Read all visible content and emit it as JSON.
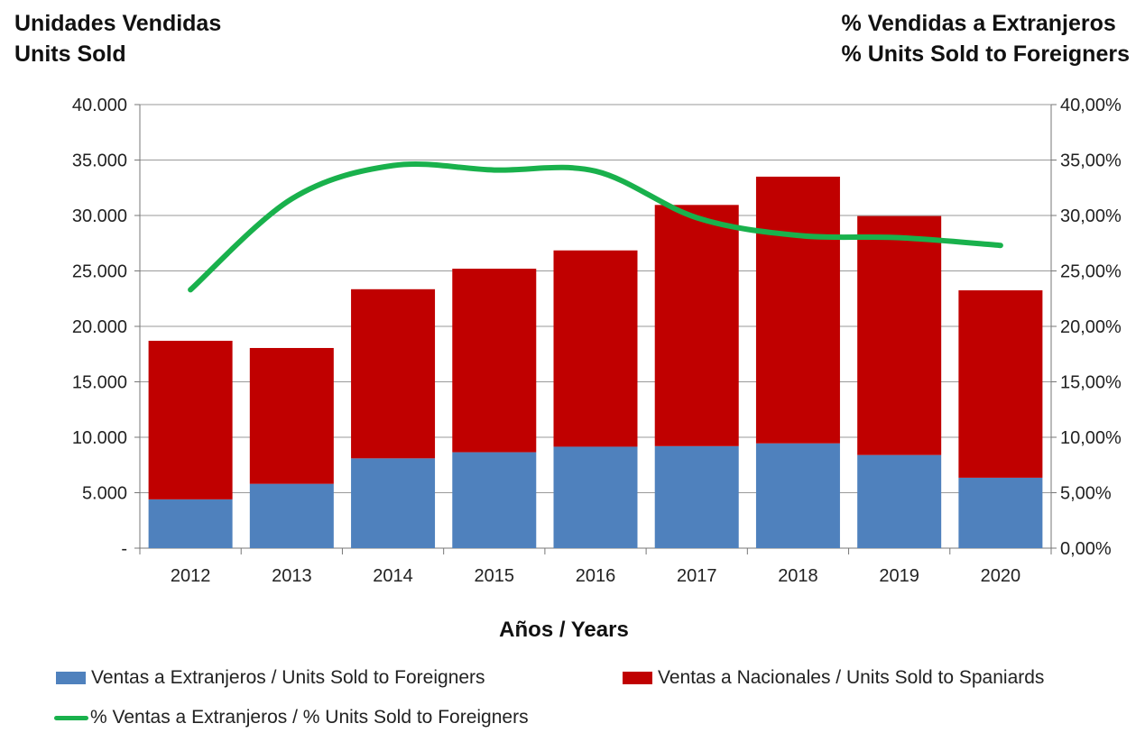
{
  "chart_data": {
    "type": "bar",
    "stacked": true,
    "title_left": [
      "Unidades Vendidas",
      "Units Sold"
    ],
    "title_right": [
      "% Vendidas a Extranjeros",
      "% Units Sold to Foreigners"
    ],
    "xlabel": "Años / Years",
    "categories": [
      "2012",
      "2013",
      "2014",
      "2015",
      "2016",
      "2017",
      "2018",
      "2019",
      "2020"
    ],
    "ylim": [
      0,
      40000
    ],
    "y_ticks": [
      "-",
      "5.000",
      "10.000",
      "15.000",
      "20.000",
      "25.000",
      "30.000",
      "35.000",
      "40.000"
    ],
    "y2lim": [
      0,
      0.4
    ],
    "y2_ticks": [
      "0,00%",
      "5,00%",
      "10,00%",
      "15,00%",
      "20,00%",
      "25,00%",
      "30,00%",
      "35,00%",
      "40,00%"
    ],
    "series": [
      {
        "name": "Ventas a Extranjeros / Units Sold to Foreigners",
        "kind": "bar",
        "color": "#4F81BD",
        "values": [
          4400,
          5800,
          8100,
          8650,
          9150,
          9200,
          9450,
          8400,
          6350
        ]
      },
      {
        "name": "Ventas a Nacionales / Units Sold to Spaniards",
        "kind": "bar",
        "color": "#C00000",
        "values": [
          14300,
          12250,
          15250,
          16550,
          17700,
          21750,
          24050,
          21550,
          16900
        ]
      },
      {
        "name": "% Ventas a Extranjeros / % Units Sold to Foreigners",
        "kind": "line",
        "axis": "right",
        "color": "#19B14C",
        "values": [
          0.233,
          0.315,
          0.345,
          0.341,
          0.34,
          0.298,
          0.282,
          0.28,
          0.273
        ]
      }
    ],
    "grid": true,
    "legend_position": "bottom"
  }
}
